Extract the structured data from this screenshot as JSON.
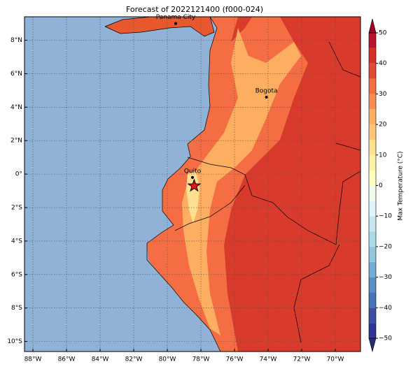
{
  "map": {
    "title": "Forecast of 2022121400 (f000-024)",
    "xlim": [
      -88.5,
      -68.5
    ],
    "ylim": [
      -10.6,
      9.4
    ],
    "xticks": [
      {
        "value": -88,
        "label": "88°W"
      },
      {
        "value": -86,
        "label": "86°W"
      },
      {
        "value": -84,
        "label": "84°W"
      },
      {
        "value": -82,
        "label": "82°W"
      },
      {
        "value": -80,
        "label": "80°W"
      },
      {
        "value": -78,
        "label": "78°W"
      },
      {
        "value": -76,
        "label": "76°W"
      },
      {
        "value": -74,
        "label": "74°W"
      },
      {
        "value": -72,
        "label": "72°W"
      },
      {
        "value": -70,
        "label": "70°W"
      }
    ],
    "yticks": [
      {
        "value": 8,
        "label": "8°N"
      },
      {
        "value": 6,
        "label": "6°N"
      },
      {
        "value": 4,
        "label": "4°N"
      },
      {
        "value": 2,
        "label": "2°N"
      },
      {
        "value": 0,
        "label": "0°"
      },
      {
        "value": -2,
        "label": "2°S"
      },
      {
        "value": -4,
        "label": "4°S"
      },
      {
        "value": -6,
        "label": "6°S"
      },
      {
        "value": -8,
        "label": "8°S"
      },
      {
        "value": -10,
        "label": "10°S"
      }
    ],
    "grid": true,
    "cities": [
      {
        "name": "Panama City",
        "lon": -79.5,
        "lat": 9.0
      },
      {
        "name": "Bogota",
        "lon": -74.1,
        "lat": 4.6
      },
      {
        "name": "Quito",
        "lon": -78.5,
        "lat": -0.2
      }
    ],
    "star": {
      "lon": -78.4,
      "lat": -0.7,
      "color": "#e8141c"
    },
    "colorbar": {
      "label": "Max Temperature (°C)",
      "lim": [
        -50,
        50
      ],
      "ticks": [
        {
          "value": -50,
          "label": "−50"
        },
        {
          "value": -40,
          "label": "−40"
        },
        {
          "value": -30,
          "label": "−30"
        },
        {
          "value": -20,
          "label": "−20"
        },
        {
          "value": -10,
          "label": "−10"
        },
        0,
        10,
        20,
        30,
        40,
        50
      ],
      "levels": [
        -50,
        -45,
        -40,
        -35,
        -30,
        -25,
        -20,
        -15,
        -10,
        -5,
        0,
        5,
        10,
        15,
        20,
        25,
        30,
        35,
        40,
        45,
        50
      ],
      "colors": [
        "#313695",
        "#3a4fa0",
        "#4575b4",
        "#5b8fc2",
        "#74add1",
        "#92c5de",
        "#abd9e9",
        "#c8e6f1",
        "#e0f3f8",
        "#f0f9ea",
        "#ffffbf",
        "#fff0a8",
        "#fee090",
        "#fdc579",
        "#fdae61",
        "#f88d52",
        "#f46d43",
        "#e34a33",
        "#d73027",
        "#b8152a"
      ],
      "under_color": "#262c7a",
      "over_color": "#a50026"
    }
  }
}
